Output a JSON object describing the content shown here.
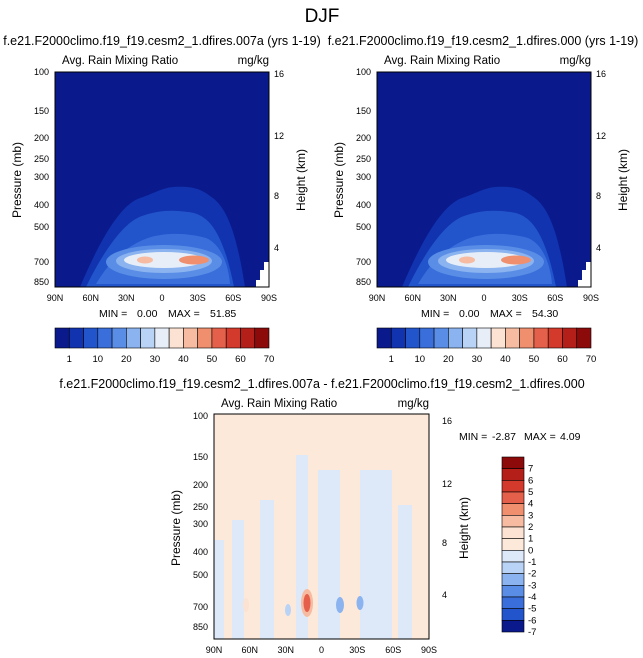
{
  "page_title": "DJF",
  "chart_data": [
    {
      "type": "heatmap",
      "title": "f.e21.F2000climo.f19_f19.cesm2_1.dfires.007a (yrs 1-19)",
      "left_label": "Avg. Rain Mixing Ratio",
      "right_label": "mg/kg",
      "ylabel": "Pressure (mb)",
      "ylabel_right": "Height (km)",
      "x_ticks": [
        "90N",
        "60N",
        "30N",
        "0",
        "30S",
        "60S",
        "90S"
      ],
      "y_ticks": [
        "100",
        "150",
        "200",
        "250",
        "300",
        "400",
        "500",
        "700",
        "850"
      ],
      "y_ticks_right": [
        "16",
        "12",
        "8",
        "4"
      ],
      "min_label": "MIN =",
      "min_value": "0.00",
      "max_label": "MAX =",
      "max_value": "51.85",
      "colorbar_labels": [
        "1",
        "10",
        "20",
        "30",
        "40",
        "50",
        "60",
        "70"
      ]
    },
    {
      "type": "heatmap",
      "title": "f.e21.F2000climo.f19_f19.cesm2_1.dfires.000 (yrs 1-19)",
      "left_label": "Avg. Rain Mixing Ratio",
      "right_label": "mg/kg",
      "ylabel": "Pressure (mb)",
      "ylabel_right": "Height (km)",
      "x_ticks": [
        "90N",
        "60N",
        "30N",
        "0",
        "30S",
        "60S",
        "90S"
      ],
      "y_ticks": [
        "100",
        "150",
        "200",
        "250",
        "300",
        "400",
        "500",
        "700",
        "850"
      ],
      "y_ticks_right": [
        "16",
        "12",
        "8",
        "4"
      ],
      "min_label": "MIN =",
      "min_value": "0.00",
      "max_label": "MAX =",
      "max_value": "54.30",
      "colorbar_labels": [
        "1",
        "10",
        "20",
        "30",
        "40",
        "50",
        "60",
        "70"
      ]
    },
    {
      "type": "heatmap",
      "title": "f.e21.F2000climo.f19_f19.cesm2_1.dfires.007a - f.e21.F2000climo.f19_f19.cesm2_1.dfires.000",
      "left_label": "Avg. Rain Mixing Ratio",
      "right_label": "mg/kg",
      "ylabel": "Pressure (mb)",
      "ylabel_right": "Height (km)",
      "x_ticks": [
        "90N",
        "60N",
        "30N",
        "0",
        "30S",
        "60S",
        "90S"
      ],
      "y_ticks": [
        "100",
        "150",
        "200",
        "250",
        "300",
        "400",
        "500",
        "700",
        "850"
      ],
      "y_ticks_right": [
        "16",
        "12",
        "8",
        "4"
      ],
      "min_label": "MIN =",
      "min_value": "-2.87",
      "max_label": "MAX =",
      "max_value": "4.09",
      "colorbar_labels": [
        "7",
        "6",
        "5",
        "4",
        "3",
        "2",
        "1",
        "0",
        "-1",
        "-2",
        "-3",
        "-4",
        "-5",
        "-6",
        "-7"
      ]
    }
  ],
  "colors": {
    "abs_scale": [
      "#0a1a8c",
      "#1133b0",
      "#2255cc",
      "#3a6fdb",
      "#5a8ee6",
      "#8ab3ef",
      "#b9d3f6",
      "#e7eef8",
      "#fbe2d2",
      "#f6bba1",
      "#ef8f6e",
      "#e4604a",
      "#d43a2b",
      "#b51f1a",
      "#8c0a0a"
    ],
    "diff_scale": [
      "#8c0a0a",
      "#b51f1a",
      "#d43a2b",
      "#e4604a",
      "#ef8f6e",
      "#f6bba1",
      "#fbe2d2",
      "#fde9d9",
      "#dde9f8",
      "#b9d3f6",
      "#8ab3ef",
      "#5a8ee6",
      "#3a6fdb",
      "#2255cc",
      "#0a1a8c"
    ]
  }
}
